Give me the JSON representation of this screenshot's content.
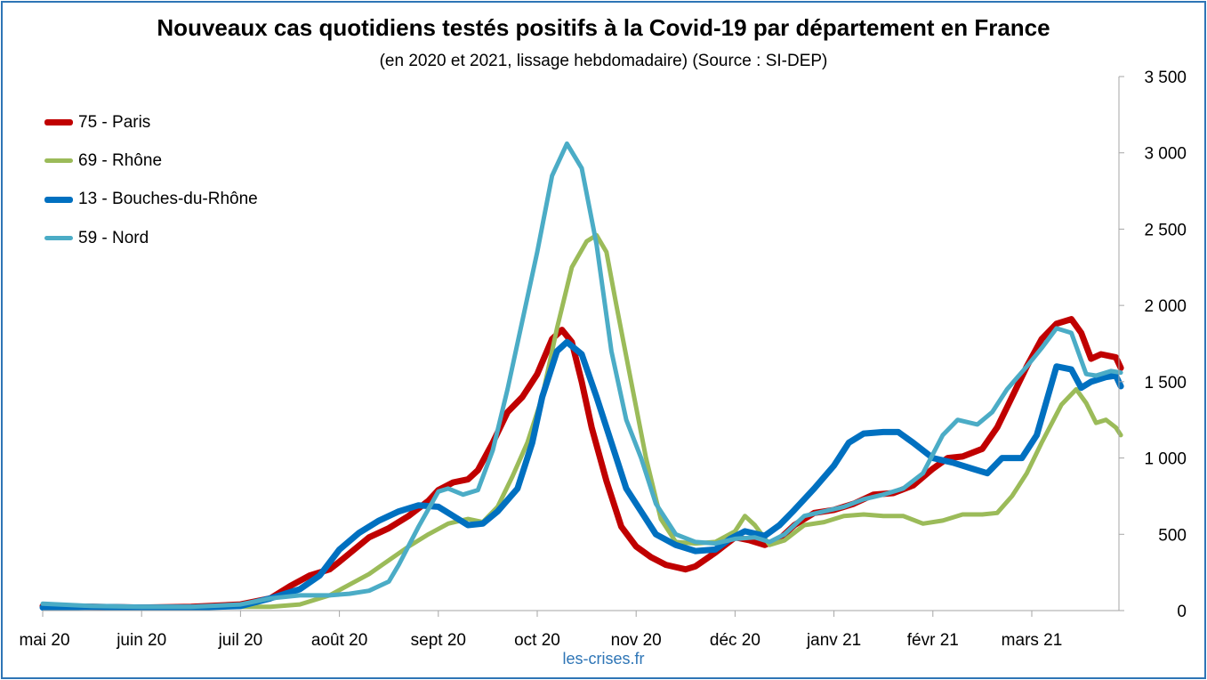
{
  "chart_data": {
    "type": "line",
    "title": "Nouveaux cas quotidiens testés positifs à la Covid-19 par département en France",
    "subtitle": "(en 2020 et 2021, lissage hebdomadaire) (Source : SI-DEP)",
    "source_label": "les-crises.fr",
    "x_axis": {
      "categories": [
        "mai 20",
        "juin 20",
        "juil 20",
        "août 20",
        "sept 20",
        "oct 20",
        "nov 20",
        "déc 20",
        "janv 21",
        "févr 21",
        "mars 21"
      ],
      "range_months": [
        0,
        10.9
      ]
    },
    "y_axis": {
      "position": "right",
      "ylim": [
        0,
        3500
      ],
      "ticks": [
        0,
        500,
        1000,
        1500,
        2000,
        2500,
        3000,
        3500
      ],
      "tick_labels": [
        "0",
        "500",
        "1 000",
        "1 500",
        "2 000",
        "2 500",
        "3 000",
        "3 500"
      ]
    },
    "legend_position": "top-left",
    "grid": false,
    "series": [
      {
        "name": "75 - Paris",
        "color": "#c00000",
        "width": 7,
        "points": [
          [
            0,
            30
          ],
          [
            0.5,
            25
          ],
          [
            1,
            20
          ],
          [
            1.5,
            25
          ],
          [
            2,
            40
          ],
          [
            2.3,
            80
          ],
          [
            2.5,
            160
          ],
          [
            2.7,
            230
          ],
          [
            2.9,
            270
          ],
          [
            3,
            320
          ],
          [
            3.3,
            480
          ],
          [
            3.5,
            540
          ],
          [
            3.7,
            620
          ],
          [
            3.9,
            720
          ],
          [
            4,
            790
          ],
          [
            4.15,
            840
          ],
          [
            4.3,
            860
          ],
          [
            4.4,
            920
          ],
          [
            4.55,
            1100
          ],
          [
            4.7,
            1300
          ],
          [
            4.85,
            1400
          ],
          [
            5,
            1550
          ],
          [
            5.15,
            1780
          ],
          [
            5.25,
            1840
          ],
          [
            5.35,
            1760
          ],
          [
            5.45,
            1500
          ],
          [
            5.55,
            1200
          ],
          [
            5.7,
            850
          ],
          [
            5.85,
            550
          ],
          [
            6,
            420
          ],
          [
            6.15,
            350
          ],
          [
            6.3,
            300
          ],
          [
            6.5,
            270
          ],
          [
            6.6,
            290
          ],
          [
            6.8,
            380
          ],
          [
            7,
            480
          ],
          [
            7.15,
            460
          ],
          [
            7.3,
            430
          ],
          [
            7.45,
            470
          ],
          [
            7.6,
            560
          ],
          [
            7.8,
            640
          ],
          [
            8,
            660
          ],
          [
            8.2,
            700
          ],
          [
            8.4,
            760
          ],
          [
            8.6,
            770
          ],
          [
            8.8,
            820
          ],
          [
            9,
            930
          ],
          [
            9.15,
            1000
          ],
          [
            9.3,
            1010
          ],
          [
            9.5,
            1060
          ],
          [
            9.65,
            1200
          ],
          [
            9.8,
            1400
          ],
          [
            9.95,
            1600
          ],
          [
            10.1,
            1780
          ],
          [
            10.25,
            1880
          ],
          [
            10.4,
            1910
          ],
          [
            10.5,
            1820
          ],
          [
            10.6,
            1650
          ],
          [
            10.7,
            1680
          ],
          [
            10.85,
            1660
          ],
          [
            10.9,
            1590
          ]
        ]
      },
      {
        "name": "69 - Rhône",
        "color": "#9bbb59",
        "width": 5,
        "points": [
          [
            0,
            30
          ],
          [
            0.5,
            25
          ],
          [
            1,
            20
          ],
          [
            1.5,
            20
          ],
          [
            2,
            25
          ],
          [
            2.3,
            25
          ],
          [
            2.6,
            40
          ],
          [
            2.9,
            100
          ],
          [
            3.1,
            170
          ],
          [
            3.3,
            240
          ],
          [
            3.5,
            330
          ],
          [
            3.7,
            420
          ],
          [
            3.9,
            500
          ],
          [
            4.1,
            570
          ],
          [
            4.3,
            600
          ],
          [
            4.45,
            580
          ],
          [
            4.6,
            680
          ],
          [
            4.75,
            880
          ],
          [
            4.9,
            1100
          ],
          [
            5.05,
            1400
          ],
          [
            5.2,
            1850
          ],
          [
            5.35,
            2250
          ],
          [
            5.5,
            2420
          ],
          [
            5.6,
            2460
          ],
          [
            5.7,
            2350
          ],
          [
            5.8,
            2000
          ],
          [
            5.95,
            1500
          ],
          [
            6.1,
            1000
          ],
          [
            6.25,
            600
          ],
          [
            6.4,
            450
          ],
          [
            6.6,
            440
          ],
          [
            6.8,
            450
          ],
          [
            7,
            520
          ],
          [
            7.1,
            620
          ],
          [
            7.2,
            560
          ],
          [
            7.35,
            430
          ],
          [
            7.5,
            460
          ],
          [
            7.7,
            560
          ],
          [
            7.9,
            580
          ],
          [
            8.1,
            620
          ],
          [
            8.3,
            630
          ],
          [
            8.5,
            620
          ],
          [
            8.7,
            620
          ],
          [
            8.9,
            570
          ],
          [
            9.1,
            590
          ],
          [
            9.3,
            630
          ],
          [
            9.5,
            630
          ],
          [
            9.65,
            640
          ],
          [
            9.8,
            750
          ],
          [
            9.95,
            900
          ],
          [
            10.1,
            1100
          ],
          [
            10.3,
            1350
          ],
          [
            10.45,
            1450
          ],
          [
            10.55,
            1360
          ],
          [
            10.65,
            1230
          ],
          [
            10.75,
            1250
          ],
          [
            10.85,
            1200
          ],
          [
            10.9,
            1150
          ]
        ]
      },
      {
        "name": "13 - Bouches-du-Rhône",
        "color": "#0070c0",
        "width": 7,
        "points": [
          [
            0,
            20
          ],
          [
            0.5,
            25
          ],
          [
            1,
            20
          ],
          [
            1.5,
            20
          ],
          [
            2,
            30
          ],
          [
            2.3,
            80
          ],
          [
            2.6,
            140
          ],
          [
            2.8,
            230
          ],
          [
            3,
            400
          ],
          [
            3.2,
            510
          ],
          [
            3.4,
            590
          ],
          [
            3.6,
            650
          ],
          [
            3.8,
            690
          ],
          [
            4,
            680
          ],
          [
            4.15,
            620
          ],
          [
            4.3,
            560
          ],
          [
            4.45,
            570
          ],
          [
            4.6,
            650
          ],
          [
            4.8,
            800
          ],
          [
            4.95,
            1100
          ],
          [
            5.05,
            1400
          ],
          [
            5.2,
            1700
          ],
          [
            5.3,
            1760
          ],
          [
            5.45,
            1680
          ],
          [
            5.6,
            1400
          ],
          [
            5.75,
            1100
          ],
          [
            5.9,
            800
          ],
          [
            6.05,
            650
          ],
          [
            6.2,
            500
          ],
          [
            6.4,
            430
          ],
          [
            6.6,
            390
          ],
          [
            6.8,
            400
          ],
          [
            6.95,
            470
          ],
          [
            7.1,
            520
          ],
          [
            7.3,
            490
          ],
          [
            7.45,
            560
          ],
          [
            7.6,
            660
          ],
          [
            7.8,
            800
          ],
          [
            8,
            950
          ],
          [
            8.15,
            1100
          ],
          [
            8.3,
            1160
          ],
          [
            8.5,
            1170
          ],
          [
            8.65,
            1170
          ],
          [
            8.8,
            1100
          ],
          [
            9,
            1000
          ],
          [
            9.2,
            970
          ],
          [
            9.4,
            930
          ],
          [
            9.55,
            900
          ],
          [
            9.7,
            1000
          ],
          [
            9.9,
            1000
          ],
          [
            10.05,
            1150
          ],
          [
            10.25,
            1600
          ],
          [
            10.4,
            1580
          ],
          [
            10.5,
            1460
          ],
          [
            10.6,
            1500
          ],
          [
            10.75,
            1530
          ],
          [
            10.85,
            1540
          ],
          [
            10.9,
            1470
          ]
        ]
      },
      {
        "name": "59 - Nord",
        "color": "#4bacc6",
        "width": 5,
        "points": [
          [
            0,
            45
          ],
          [
            0.5,
            30
          ],
          [
            1,
            25
          ],
          [
            1.5,
            25
          ],
          [
            2,
            40
          ],
          [
            2.3,
            80
          ],
          [
            2.6,
            100
          ],
          [
            2.9,
            100
          ],
          [
            3.1,
            110
          ],
          [
            3.3,
            130
          ],
          [
            3.5,
            190
          ],
          [
            3.6,
            300
          ],
          [
            3.8,
            550
          ],
          [
            4,
            780
          ],
          [
            4.1,
            800
          ],
          [
            4.25,
            760
          ],
          [
            4.4,
            790
          ],
          [
            4.55,
            1050
          ],
          [
            4.7,
            1450
          ],
          [
            4.85,
            1900
          ],
          [
            5,
            2350
          ],
          [
            5.15,
            2850
          ],
          [
            5.3,
            3060
          ],
          [
            5.45,
            2900
          ],
          [
            5.6,
            2400
          ],
          [
            5.75,
            1700
          ],
          [
            5.9,
            1250
          ],
          [
            6.05,
            1000
          ],
          [
            6.2,
            700
          ],
          [
            6.4,
            500
          ],
          [
            6.6,
            450
          ],
          [
            6.8,
            440
          ],
          [
            7,
            470
          ],
          [
            7.2,
            480
          ],
          [
            7.35,
            450
          ],
          [
            7.5,
            500
          ],
          [
            7.7,
            620
          ],
          [
            7.9,
            650
          ],
          [
            8.1,
            680
          ],
          [
            8.3,
            730
          ],
          [
            8.5,
            760
          ],
          [
            8.7,
            800
          ],
          [
            8.9,
            900
          ],
          [
            9.1,
            1150
          ],
          [
            9.25,
            1250
          ],
          [
            9.45,
            1220
          ],
          [
            9.6,
            1300
          ],
          [
            9.75,
            1450
          ],
          [
            9.95,
            1600
          ],
          [
            10.1,
            1720
          ],
          [
            10.25,
            1850
          ],
          [
            10.4,
            1820
          ],
          [
            10.55,
            1550
          ],
          [
            10.65,
            1540
          ],
          [
            10.8,
            1570
          ],
          [
            10.9,
            1560
          ]
        ]
      }
    ]
  }
}
